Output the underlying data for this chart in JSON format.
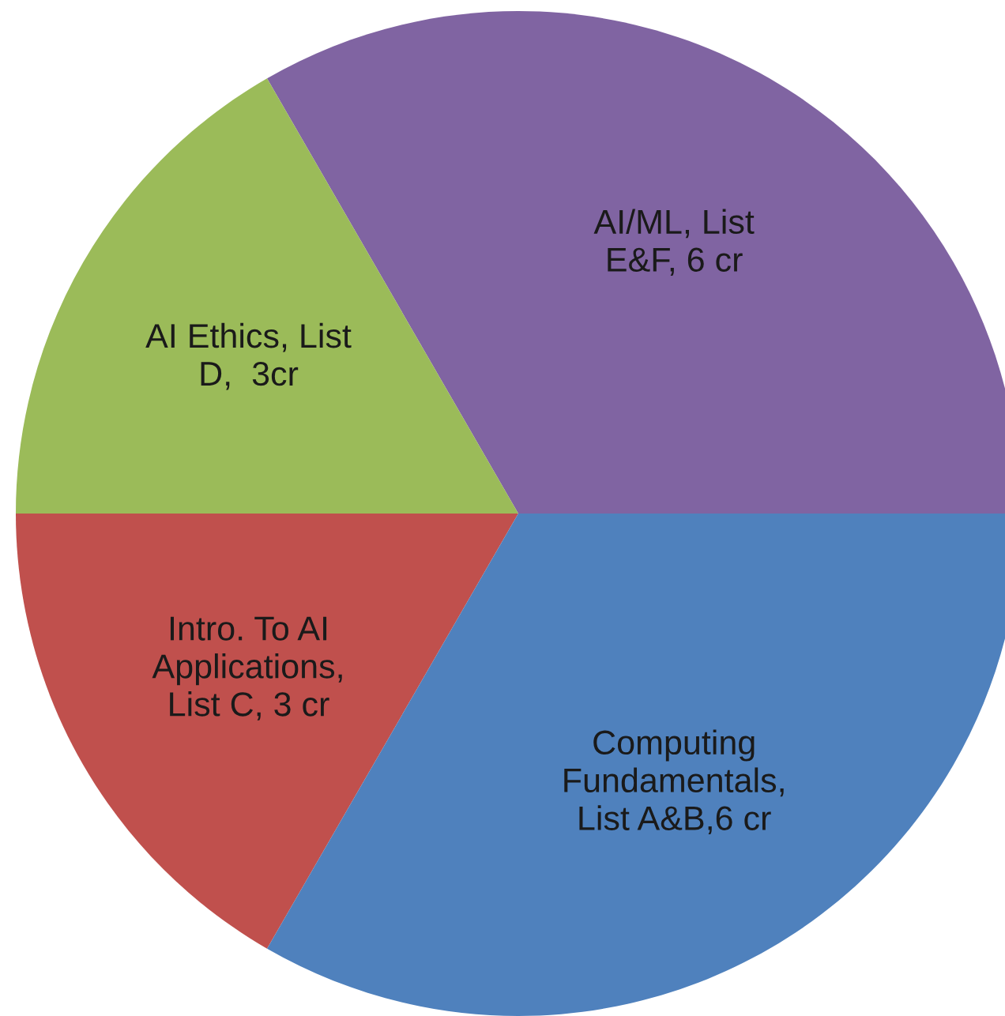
{
  "chart_data": {
    "type": "pie",
    "categories": [
      "AI/ML, List\nE&F, 6 cr",
      "AI Ethics, List\nD,  3cr",
      "Intro. To AI\nApplications,\nList C, 3 cr",
      "Computing\nFundamentals,\nList A&B,6 cr"
    ],
    "values": [
      6,
      3,
      3,
      6
    ],
    "colors": [
      "#8064a2",
      "#9bbb59",
      "#c0504d",
      "#4f81bd"
    ],
    "legend": false
  }
}
